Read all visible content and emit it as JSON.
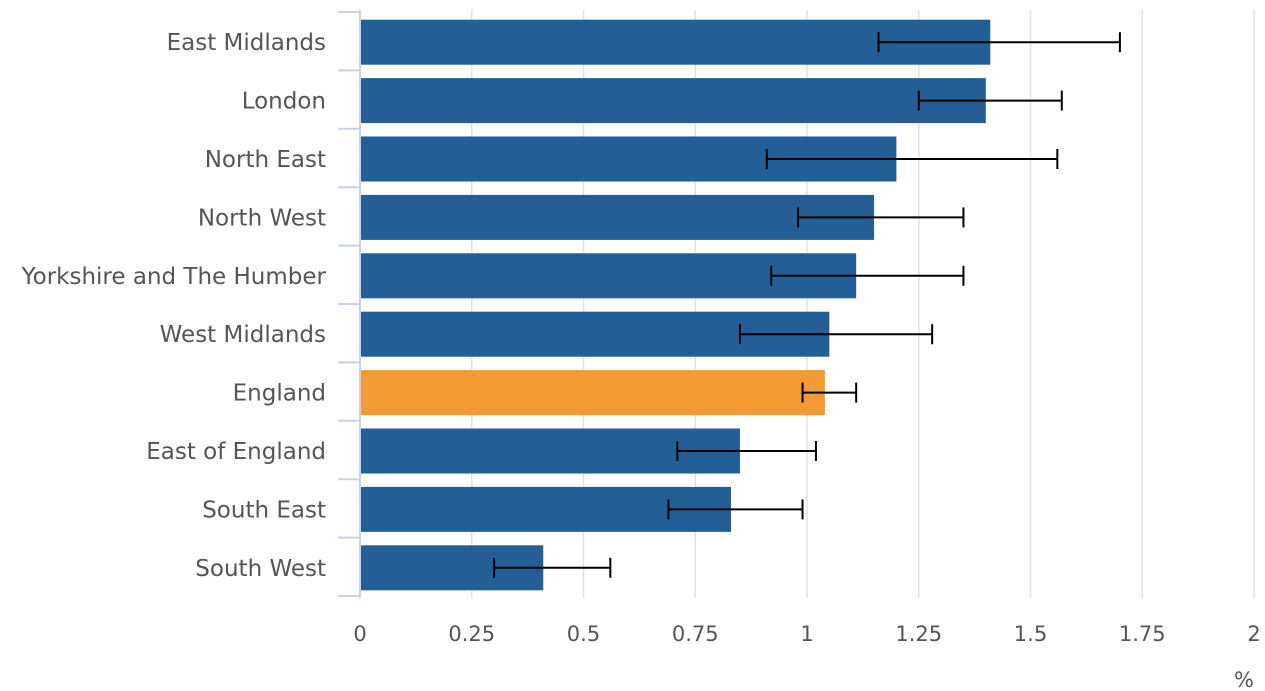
{
  "chart_data": {
    "type": "bar",
    "orientation": "horizontal",
    "categories": [
      "East Midlands",
      "London",
      "North East",
      "North West",
      "Yorkshire and The Humber",
      "West Midlands",
      "England",
      "East of England",
      "South East",
      "South West"
    ],
    "values": [
      1.41,
      1.4,
      1.2,
      1.15,
      1.11,
      1.05,
      1.04,
      0.85,
      0.83,
      0.41
    ],
    "error_low": [
      1.16,
      1.25,
      0.91,
      0.98,
      0.92,
      0.85,
      0.99,
      0.71,
      0.69,
      0.3
    ],
    "error_high": [
      1.7,
      1.57,
      1.56,
      1.35,
      1.35,
      1.28,
      1.11,
      1.02,
      0.99,
      0.56
    ],
    "highlight_category": "England",
    "colors": {
      "bar": "#235f96",
      "highlight": "#f39a33"
    },
    "xlim": [
      0,
      2
    ],
    "x_ticks": [
      "0",
      "0.25",
      "0.5",
      "0.75",
      "1",
      "1.25",
      "1.5",
      "1.75",
      "2"
    ],
    "x_unit": "%",
    "title": "",
    "xlabel": "",
    "ylabel": "",
    "grid": true,
    "legend": "none"
  }
}
